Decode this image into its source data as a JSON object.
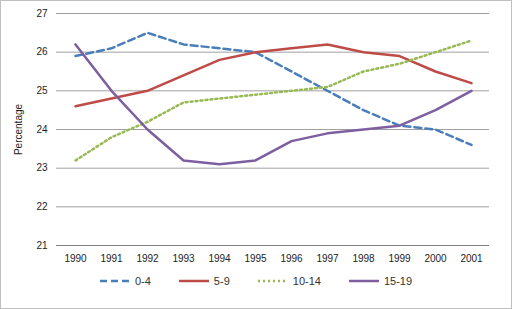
{
  "chart_data": {
    "type": "line",
    "y_label": "Percentage",
    "x": [
      1990,
      1991,
      1992,
      1993,
      1994,
      1995,
      1996,
      1997,
      1998,
      1999,
      2000,
      2001
    ],
    "ylim": [
      21,
      27
    ],
    "yticks": [
      21,
      22,
      23,
      24,
      25,
      26,
      27
    ],
    "grid": true,
    "legend": "bottom",
    "series": [
      {
        "name": "0-4",
        "color": "#4a7ebb",
        "line_style": "dashed",
        "values": [
          25.9,
          26.1,
          26.5,
          26.2,
          26.1,
          26.0,
          25.5,
          25.0,
          24.5,
          24.1,
          24.0,
          23.6
        ]
      },
      {
        "name": "5-9",
        "color": "#be4b48",
        "line_style": "solid",
        "values": [
          24.6,
          24.8,
          25.0,
          25.4,
          25.8,
          26.0,
          26.1,
          26.2,
          26.0,
          25.9,
          25.5,
          25.2
        ]
      },
      {
        "name": "10-14",
        "color": "#98b954",
        "line_style": "dotted",
        "values": [
          23.2,
          23.8,
          24.2,
          24.7,
          24.8,
          24.9,
          25.0,
          25.1,
          25.5,
          25.7,
          26.0,
          26.3
        ]
      },
      {
        "name": "15-19",
        "color": "#7d5fa0",
        "line_style": "solid",
        "values": [
          26.2,
          25.0,
          24.0,
          23.2,
          23.1,
          23.2,
          23.7,
          23.9,
          24.0,
          24.1,
          24.5,
          25.0
        ]
      }
    ]
  }
}
